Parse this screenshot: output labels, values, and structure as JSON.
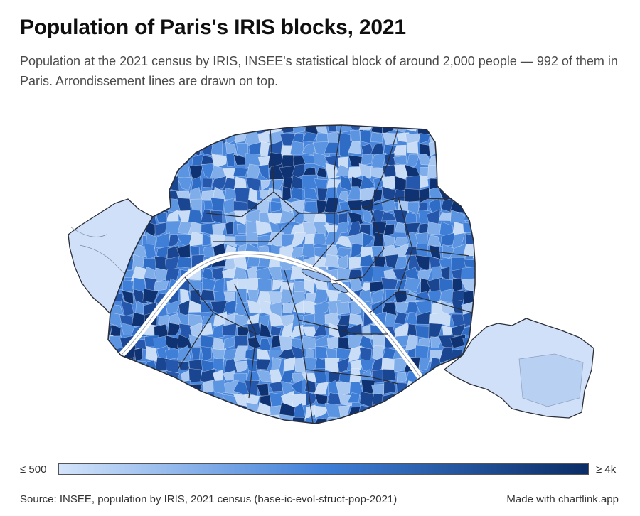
{
  "title": "Population of Paris's IRIS blocks, 2021",
  "subtitle": "Population at the 2021 census by IRIS, INSEE's statistical block of around 2,000 people — 992 of them in Paris. Arrondissement lines are drawn on top.",
  "legend": {
    "min_label": "≤ 500",
    "max_label": "≥ 4k",
    "color_low": "#d3e4fb",
    "color_mid": "#3f7fd8",
    "color_high": "#0b2d66"
  },
  "colors": {
    "block_palette": [
      "#c9ddf7",
      "#a9c8f1",
      "#7fadea",
      "#5b94e0",
      "#3f7fd8",
      "#2f6cc6",
      "#2558ad",
      "#1a4590",
      "#0f3272"
    ],
    "outline": "#2b2f3a",
    "park": "#cfe0f8",
    "seine": "#ffffff"
  },
  "footer": {
    "source": "Source: INSEE, population by IRIS, 2021 census (base-ic-evol-struct-pop-2021)",
    "credit": "Made with chartlink.app"
  }
}
